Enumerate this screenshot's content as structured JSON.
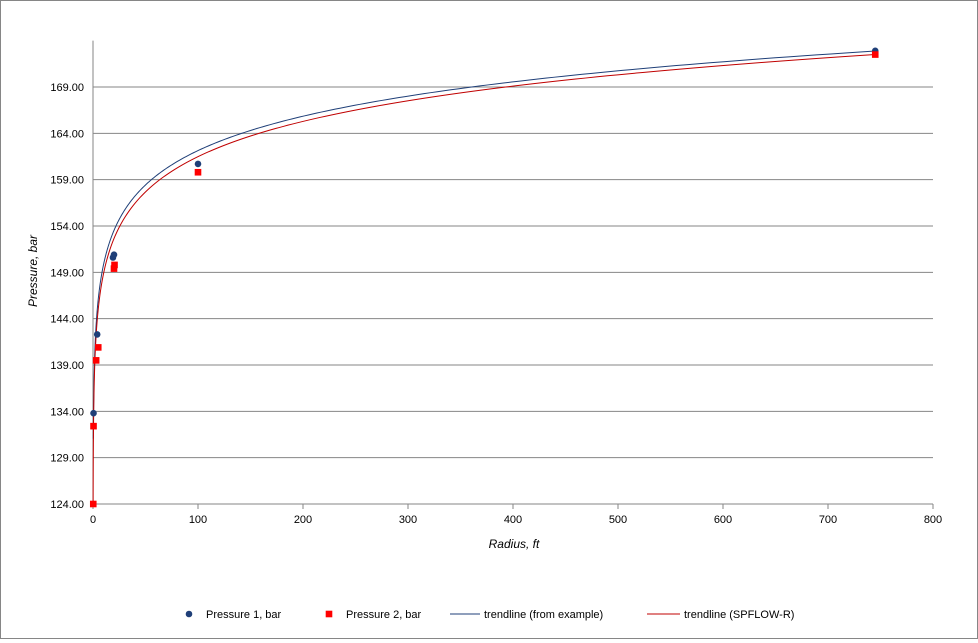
{
  "chart_data": {
    "type": "scatter",
    "title": "",
    "xlabel": "Radius, ft",
    "ylabel": "Pressure, bar",
    "xlim": [
      0,
      800
    ],
    "ylim": [
      124,
      174
    ],
    "xticks": [
      0,
      100,
      200,
      300,
      400,
      500,
      600,
      700,
      800
    ],
    "yticks": [
      "124.00",
      "129.00",
      "134.00",
      "139.00",
      "144.00",
      "149.00",
      "154.00",
      "159.00",
      "164.00",
      "169.00"
    ],
    "grid": "horizontal",
    "legend_position": "bottom",
    "series": [
      {
        "name": "Pressure 1, bar",
        "kind": "points",
        "marker": "circle",
        "color": "#1f3f78",
        "x": [
          0.5,
          4,
          19,
          20,
          100,
          745
        ],
        "y": [
          133.8,
          142.3,
          150.6,
          150.9,
          160.7,
          172.9
        ]
      },
      {
        "name": "Pressure 2, bar",
        "kind": "points",
        "marker": "square",
        "color": "#ff0000",
        "x": [
          0.25,
          0.5,
          3,
          5,
          20,
          20.5,
          100,
          745
        ],
        "y": [
          124.0,
          132.4,
          139.5,
          140.9,
          149.4,
          149.8,
          159.8,
          172.5
        ]
      },
      {
        "name": "trendline (from example)",
        "kind": "log-trend",
        "color": "#1f3f78",
        "a": 137.5,
        "b": 5.35,
        "x_from": 0.3,
        "x_to": 745
      },
      {
        "name": "trendline (SPFLOW-R)",
        "kind": "log-trend",
        "color": "#c00000",
        "a": 136.2,
        "b": 5.49,
        "x_from": 0.11,
        "x_to": 745
      }
    ]
  }
}
